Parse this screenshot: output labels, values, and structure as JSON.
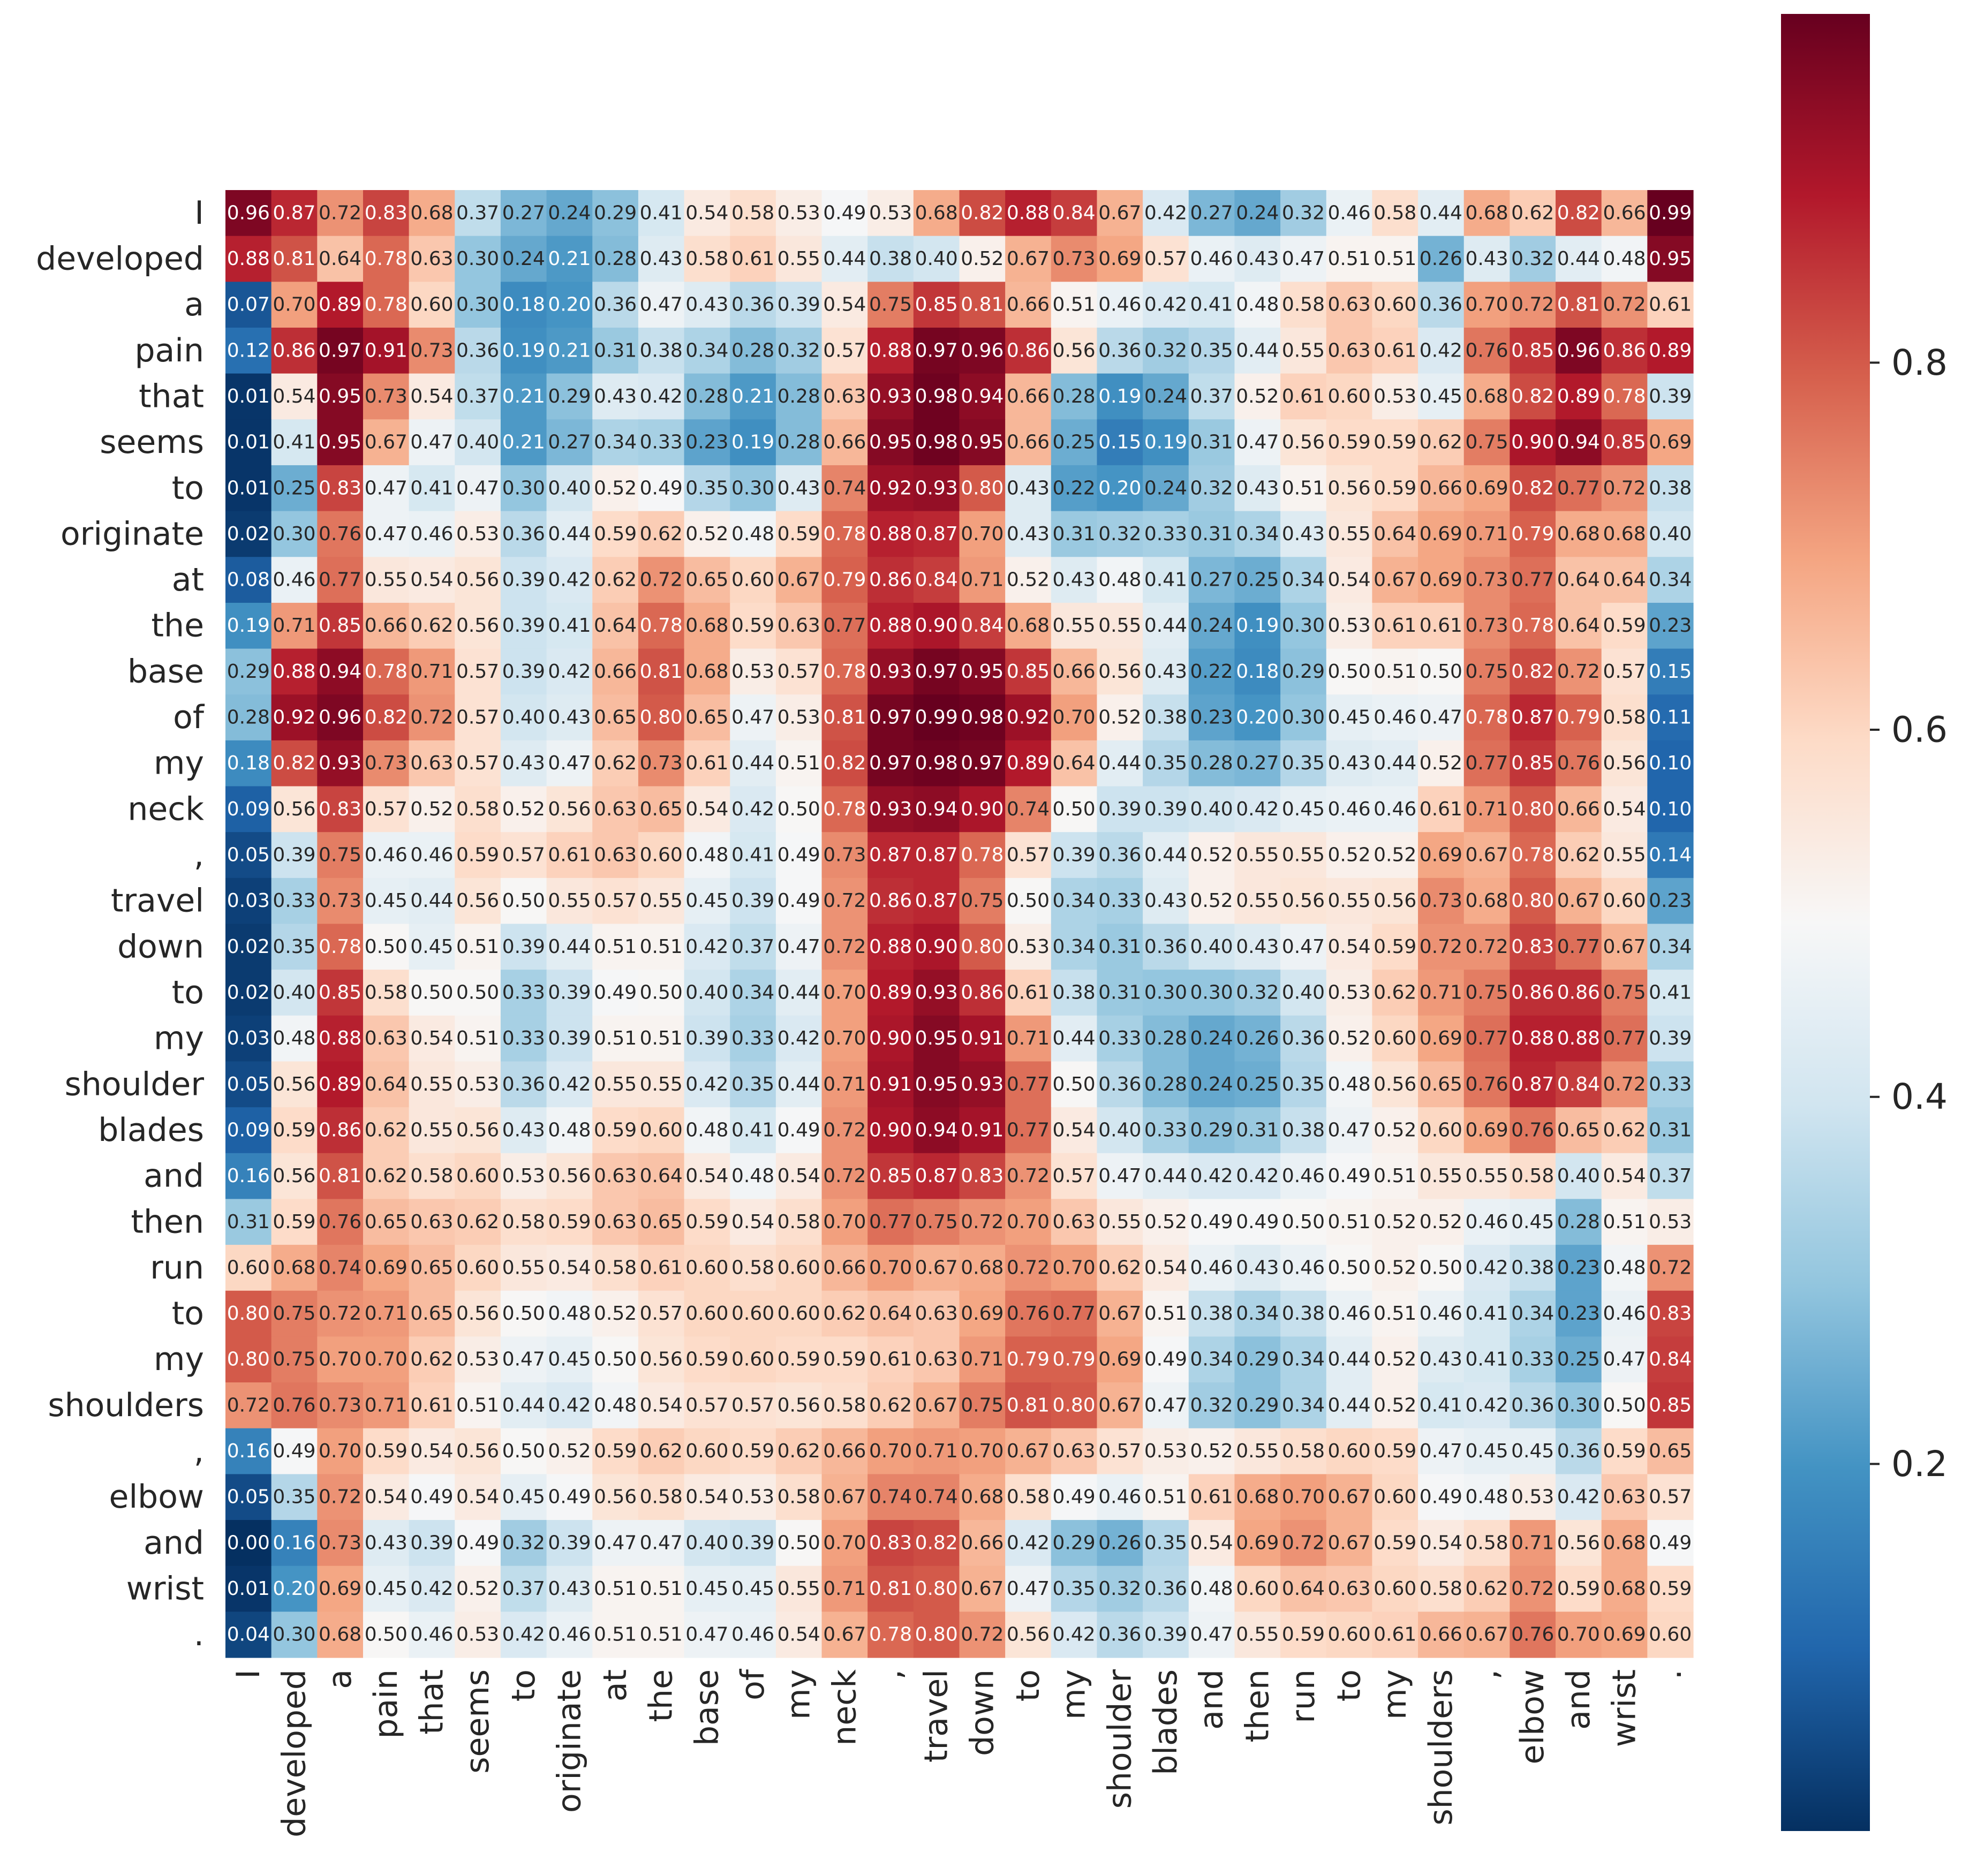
{
  "chart_data": {
    "type": "heatmap",
    "title": "",
    "xlabel": "",
    "ylabel": "",
    "colormap": "RdBu_r",
    "vmin": 0.0,
    "vmax": 0.99,
    "annotate": true,
    "value_format": "0.00",
    "x_labels": [
      "I",
      "developed",
      "a",
      "pain",
      "that",
      "seems",
      "to",
      "originate",
      "at",
      "the",
      "base",
      "of",
      "my",
      "neck",
      ",",
      "travel",
      "down",
      "to",
      "my",
      "shoulder",
      "blades",
      "and",
      "then",
      "run",
      "to",
      "my",
      "shoulders",
      ",",
      "elbow",
      "and",
      "wrist",
      "."
    ],
    "y_labels": [
      "I",
      "developed",
      "a",
      "pain",
      "that",
      "seems",
      "to",
      "originate",
      "at",
      "the",
      "base",
      "of",
      "my",
      "neck",
      ",",
      "travel",
      "down",
      "to",
      "my",
      "shoulder",
      "blades",
      "and",
      "then",
      "run",
      "to",
      "my",
      "shoulders",
      ",",
      "elbow",
      "and",
      "wrist",
      "."
    ],
    "colorbar_ticks": [
      0.2,
      0.4,
      0.6,
      0.8
    ],
    "colorbar_tick_labels": [
      "0.2",
      "0.4",
      "0.6",
      "0.8"
    ],
    "values": [
      [
        0.96,
        0.87,
        0.72,
        0.83,
        0.68,
        0.37,
        0.27,
        0.24,
        0.29,
        0.41,
        0.54,
        0.58,
        0.53,
        0.49,
        0.53,
        0.68,
        0.82,
        0.88,
        0.84,
        0.67,
        0.42,
        0.27,
        0.24,
        0.32,
        0.46,
        0.58,
        0.44,
        0.68,
        0.62,
        0.82,
        0.66,
        0.99
      ],
      [
        0.88,
        0.81,
        0.64,
        0.78,
        0.63,
        0.3,
        0.24,
        0.21,
        0.28,
        0.43,
        0.58,
        0.61,
        0.55,
        0.44,
        0.38,
        0.4,
        0.52,
        0.67,
        0.73,
        0.69,
        0.57,
        0.46,
        0.43,
        0.47,
        0.51,
        0.51,
        0.26,
        0.43,
        0.32,
        0.44,
        0.48,
        0.95
      ],
      [
        0.07,
        0.7,
        0.89,
        0.78,
        0.6,
        0.3,
        0.18,
        0.2,
        0.36,
        0.47,
        0.43,
        0.36,
        0.39,
        0.54,
        0.75,
        0.85,
        0.81,
        0.66,
        0.51,
        0.46,
        0.42,
        0.41,
        0.48,
        0.58,
        0.63,
        0.6,
        0.36,
        0.7,
        0.72,
        0.81,
        0.72,
        0.61
      ],
      [
        0.12,
        0.86,
        0.97,
        0.91,
        0.73,
        0.36,
        0.19,
        0.21,
        0.31,
        0.38,
        0.34,
        0.28,
        0.32,
        0.57,
        0.88,
        0.97,
        0.96,
        0.86,
        0.56,
        0.36,
        0.32,
        0.35,
        0.44,
        0.55,
        0.63,
        0.61,
        0.42,
        0.76,
        0.85,
        0.96,
        0.86,
        0.89
      ],
      [
        0.01,
        0.54,
        0.95,
        0.73,
        0.54,
        0.37,
        0.21,
        0.29,
        0.43,
        0.42,
        0.28,
        0.21,
        0.28,
        0.63,
        0.93,
        0.98,
        0.94,
        0.66,
        0.28,
        0.19,
        0.24,
        0.37,
        0.52,
        0.61,
        0.6,
        0.53,
        0.45,
        0.68,
        0.82,
        0.89,
        0.78,
        0.39
      ],
      [
        0.01,
        0.41,
        0.95,
        0.67,
        0.47,
        0.4,
        0.21,
        0.27,
        0.34,
        0.33,
        0.23,
        0.19,
        0.28,
        0.66,
        0.95,
        0.98,
        0.95,
        0.66,
        0.25,
        0.15,
        0.19,
        0.31,
        0.47,
        0.56,
        0.59,
        0.59,
        0.62,
        0.75,
        0.9,
        0.94,
        0.85,
        0.69
      ],
      [
        0.01,
        0.25,
        0.83,
        0.47,
        0.41,
        0.47,
        0.3,
        0.4,
        0.52,
        0.49,
        0.35,
        0.3,
        0.43,
        0.74,
        0.92,
        0.93,
        0.8,
        0.43,
        0.22,
        0.2,
        0.24,
        0.32,
        0.43,
        0.51,
        0.56,
        0.59,
        0.66,
        0.69,
        0.82,
        0.77,
        0.72,
        0.38
      ],
      [
        0.02,
        0.3,
        0.76,
        0.47,
        0.46,
        0.53,
        0.36,
        0.44,
        0.59,
        0.62,
        0.52,
        0.48,
        0.59,
        0.78,
        0.88,
        0.87,
        0.7,
        0.43,
        0.31,
        0.32,
        0.33,
        0.31,
        0.34,
        0.43,
        0.55,
        0.64,
        0.69,
        0.71,
        0.79,
        0.68,
        0.68,
        0.4
      ],
      [
        0.08,
        0.46,
        0.77,
        0.55,
        0.54,
        0.56,
        0.39,
        0.42,
        0.62,
        0.72,
        0.65,
        0.6,
        0.67,
        0.79,
        0.86,
        0.84,
        0.71,
        0.52,
        0.43,
        0.48,
        0.41,
        0.27,
        0.25,
        0.34,
        0.54,
        0.67,
        0.69,
        0.73,
        0.77,
        0.64,
        0.64,
        0.34
      ],
      [
        0.19,
        0.71,
        0.85,
        0.66,
        0.62,
        0.56,
        0.39,
        0.41,
        0.64,
        0.78,
        0.68,
        0.59,
        0.63,
        0.77,
        0.88,
        0.9,
        0.84,
        0.68,
        0.55,
        0.55,
        0.44,
        0.24,
        0.19,
        0.3,
        0.53,
        0.61,
        0.61,
        0.73,
        0.78,
        0.64,
        0.59,
        0.23
      ],
      [
        0.29,
        0.88,
        0.94,
        0.78,
        0.71,
        0.57,
        0.39,
        0.42,
        0.66,
        0.81,
        0.68,
        0.53,
        0.57,
        0.78,
        0.93,
        0.97,
        0.95,
        0.85,
        0.66,
        0.56,
        0.43,
        0.22,
        0.18,
        0.29,
        0.5,
        0.51,
        0.5,
        0.75,
        0.82,
        0.72,
        0.57,
        0.15
      ],
      [
        0.28,
        0.92,
        0.96,
        0.82,
        0.72,
        0.57,
        0.4,
        0.43,
        0.65,
        0.8,
        0.65,
        0.47,
        0.53,
        0.81,
        0.97,
        0.99,
        0.98,
        0.92,
        0.7,
        0.52,
        0.38,
        0.23,
        0.2,
        0.3,
        0.45,
        0.46,
        0.47,
        0.78,
        0.87,
        0.79,
        0.58,
        0.11
      ],
      [
        0.18,
        0.82,
        0.93,
        0.73,
        0.63,
        0.57,
        0.43,
        0.47,
        0.62,
        0.73,
        0.61,
        0.44,
        0.51,
        0.82,
        0.97,
        0.98,
        0.97,
        0.89,
        0.64,
        0.44,
        0.35,
        0.28,
        0.27,
        0.35,
        0.43,
        0.44,
        0.52,
        0.77,
        0.85,
        0.76,
        0.56,
        0.1
      ],
      [
        0.09,
        0.56,
        0.83,
        0.57,
        0.52,
        0.58,
        0.52,
        0.56,
        0.63,
        0.65,
        0.54,
        0.42,
        0.5,
        0.78,
        0.93,
        0.94,
        0.9,
        0.74,
        0.5,
        0.39,
        0.39,
        0.4,
        0.42,
        0.45,
        0.46,
        0.46,
        0.61,
        0.71,
        0.8,
        0.66,
        0.54,
        0.1
      ],
      [
        0.05,
        0.39,
        0.75,
        0.46,
        0.46,
        0.59,
        0.57,
        0.61,
        0.63,
        0.6,
        0.48,
        0.41,
        0.49,
        0.73,
        0.87,
        0.87,
        0.78,
        0.57,
        0.39,
        0.36,
        0.44,
        0.52,
        0.55,
        0.55,
        0.52,
        0.52,
        0.69,
        0.67,
        0.78,
        0.62,
        0.55,
        0.14
      ],
      [
        0.03,
        0.33,
        0.73,
        0.45,
        0.44,
        0.56,
        0.5,
        0.55,
        0.57,
        0.55,
        0.45,
        0.39,
        0.49,
        0.72,
        0.86,
        0.87,
        0.75,
        0.5,
        0.34,
        0.33,
        0.43,
        0.52,
        0.55,
        0.56,
        0.55,
        0.56,
        0.73,
        0.68,
        0.8,
        0.67,
        0.6,
        0.23
      ],
      [
        0.02,
        0.35,
        0.78,
        0.5,
        0.45,
        0.51,
        0.39,
        0.44,
        0.51,
        0.51,
        0.42,
        0.37,
        0.47,
        0.72,
        0.88,
        0.9,
        0.8,
        0.53,
        0.34,
        0.31,
        0.36,
        0.4,
        0.43,
        0.47,
        0.54,
        0.59,
        0.72,
        0.72,
        0.83,
        0.77,
        0.67,
        0.34
      ],
      [
        0.02,
        0.4,
        0.85,
        0.58,
        0.5,
        0.5,
        0.33,
        0.39,
        0.49,
        0.5,
        0.4,
        0.34,
        0.44,
        0.7,
        0.89,
        0.93,
        0.86,
        0.61,
        0.38,
        0.31,
        0.3,
        0.3,
        0.32,
        0.4,
        0.53,
        0.62,
        0.71,
        0.75,
        0.86,
        0.86,
        0.75,
        0.41
      ],
      [
        0.03,
        0.48,
        0.88,
        0.63,
        0.54,
        0.51,
        0.33,
        0.39,
        0.51,
        0.51,
        0.39,
        0.33,
        0.42,
        0.7,
        0.9,
        0.95,
        0.91,
        0.71,
        0.44,
        0.33,
        0.28,
        0.24,
        0.26,
        0.36,
        0.52,
        0.6,
        0.69,
        0.77,
        0.88,
        0.88,
        0.77,
        0.39
      ],
      [
        0.05,
        0.56,
        0.89,
        0.64,
        0.55,
        0.53,
        0.36,
        0.42,
        0.55,
        0.55,
        0.42,
        0.35,
        0.44,
        0.71,
        0.91,
        0.95,
        0.93,
        0.77,
        0.5,
        0.36,
        0.28,
        0.24,
        0.25,
        0.35,
        0.48,
        0.56,
        0.65,
        0.76,
        0.87,
        0.84,
        0.72,
        0.33
      ],
      [
        0.09,
        0.59,
        0.86,
        0.62,
        0.55,
        0.56,
        0.43,
        0.48,
        0.59,
        0.6,
        0.48,
        0.41,
        0.49,
        0.72,
        0.9,
        0.94,
        0.91,
        0.77,
        0.54,
        0.4,
        0.33,
        0.29,
        0.31,
        0.38,
        0.47,
        0.52,
        0.6,
        0.69,
        0.76,
        0.65,
        0.62,
        0.31
      ],
      [
        0.16,
        0.56,
        0.81,
        0.62,
        0.58,
        0.6,
        0.53,
        0.56,
        0.63,
        0.64,
        0.54,
        0.48,
        0.54,
        0.72,
        0.85,
        0.87,
        0.83,
        0.72,
        0.57,
        0.47,
        0.44,
        0.42,
        0.42,
        0.46,
        0.49,
        0.51,
        0.55,
        0.55,
        0.58,
        0.4,
        0.54,
        0.37
      ],
      [
        0.31,
        0.59,
        0.76,
        0.65,
        0.63,
        0.62,
        0.58,
        0.59,
        0.63,
        0.65,
        0.59,
        0.54,
        0.58,
        0.7,
        0.77,
        0.75,
        0.72,
        0.7,
        0.63,
        0.55,
        0.52,
        0.49,
        0.49,
        0.5,
        0.51,
        0.52,
        0.52,
        0.46,
        0.45,
        0.28,
        0.51,
        0.53
      ],
      [
        0.6,
        0.68,
        0.74,
        0.69,
        0.65,
        0.6,
        0.55,
        0.54,
        0.58,
        0.61,
        0.6,
        0.58,
        0.6,
        0.66,
        0.7,
        0.67,
        0.68,
        0.72,
        0.7,
        0.62,
        0.54,
        0.46,
        0.43,
        0.46,
        0.5,
        0.52,
        0.5,
        0.42,
        0.38,
        0.23,
        0.48,
        0.72
      ],
      [
        0.8,
        0.75,
        0.72,
        0.71,
        0.65,
        0.56,
        0.5,
        0.48,
        0.52,
        0.57,
        0.6,
        0.6,
        0.6,
        0.62,
        0.64,
        0.63,
        0.69,
        0.76,
        0.77,
        0.67,
        0.51,
        0.38,
        0.34,
        0.38,
        0.46,
        0.51,
        0.46,
        0.41,
        0.34,
        0.23,
        0.46,
        0.83
      ],
      [
        0.8,
        0.75,
        0.7,
        0.7,
        0.62,
        0.53,
        0.47,
        0.45,
        0.5,
        0.56,
        0.59,
        0.6,
        0.59,
        0.59,
        0.61,
        0.63,
        0.71,
        0.79,
        0.79,
        0.69,
        0.49,
        0.34,
        0.29,
        0.34,
        0.44,
        0.52,
        0.43,
        0.41,
        0.33,
        0.25,
        0.47,
        0.84
      ],
      [
        0.72,
        0.76,
        0.73,
        0.71,
        0.61,
        0.51,
        0.44,
        0.42,
        0.48,
        0.54,
        0.57,
        0.57,
        0.56,
        0.58,
        0.62,
        0.67,
        0.75,
        0.81,
        0.8,
        0.67,
        0.47,
        0.32,
        0.29,
        0.34,
        0.44,
        0.52,
        0.41,
        0.42,
        0.36,
        0.3,
        0.5,
        0.85
      ],
      [
        0.16,
        0.49,
        0.7,
        0.59,
        0.54,
        0.56,
        0.5,
        0.52,
        0.59,
        0.62,
        0.6,
        0.59,
        0.62,
        0.66,
        0.7,
        0.71,
        0.7,
        0.67,
        0.63,
        0.57,
        0.53,
        0.52,
        0.55,
        0.58,
        0.6,
        0.59,
        0.47,
        0.45,
        0.45,
        0.36,
        0.59,
        0.65
      ],
      [
        0.05,
        0.35,
        0.72,
        0.54,
        0.49,
        0.54,
        0.45,
        0.49,
        0.56,
        0.58,
        0.54,
        0.53,
        0.58,
        0.67,
        0.74,
        0.74,
        0.68,
        0.58,
        0.49,
        0.46,
        0.51,
        0.61,
        0.68,
        0.7,
        0.67,
        0.6,
        0.49,
        0.48,
        0.53,
        0.42,
        0.63,
        0.57
      ],
      [
        0.0,
        0.16,
        0.73,
        0.43,
        0.39,
        0.49,
        0.32,
        0.39,
        0.47,
        0.47,
        0.4,
        0.39,
        0.5,
        0.7,
        0.83,
        0.82,
        0.66,
        0.42,
        0.29,
        0.26,
        0.35,
        0.54,
        0.69,
        0.72,
        0.67,
        0.59,
        0.54,
        0.58,
        0.71,
        0.56,
        0.68,
        0.49
      ],
      [
        0.01,
        0.2,
        0.69,
        0.45,
        0.42,
        0.52,
        0.37,
        0.43,
        0.51,
        0.51,
        0.45,
        0.45,
        0.55,
        0.71,
        0.81,
        0.8,
        0.67,
        0.47,
        0.35,
        0.32,
        0.36,
        0.48,
        0.6,
        0.64,
        0.63,
        0.6,
        0.58,
        0.62,
        0.72,
        0.59,
        0.68,
        0.59
      ],
      [
        0.04,
        0.3,
        0.68,
        0.5,
        0.46,
        0.53,
        0.42,
        0.46,
        0.51,
        0.51,
        0.47,
        0.46,
        0.54,
        0.67,
        0.78,
        0.8,
        0.72,
        0.56,
        0.42,
        0.36,
        0.39,
        0.47,
        0.55,
        0.59,
        0.6,
        0.61,
        0.66,
        0.67,
        0.76,
        0.7,
        0.69,
        0.6
      ]
    ]
  }
}
